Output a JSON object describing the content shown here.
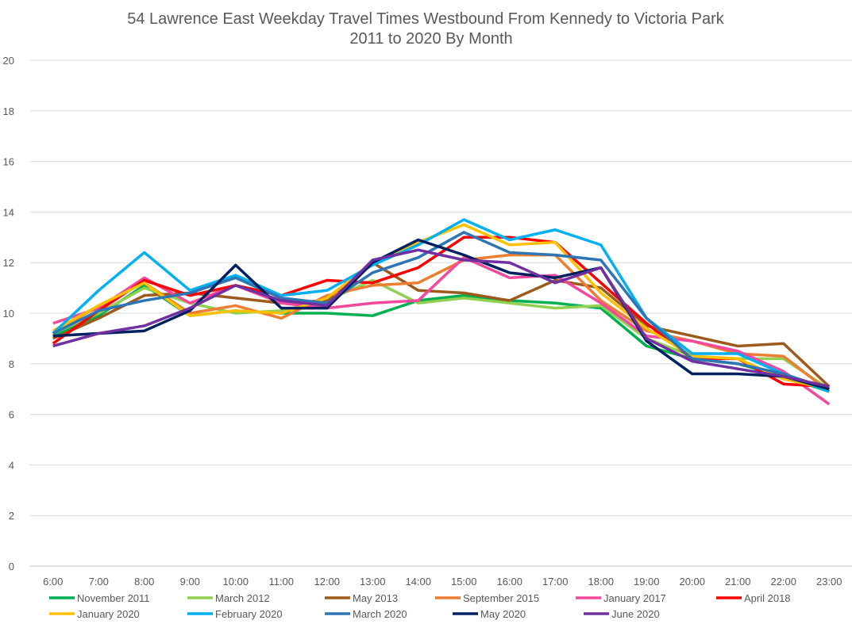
{
  "chart_data": {
    "type": "line",
    "title": [
      "54 Lawrence East Weekday Travel Times Westbound From Kennedy to Victoria Park",
      "2011 to 2020 By Month"
    ],
    "xlabel": "",
    "ylabel": "",
    "ylim": [
      0,
      20
    ],
    "yticks": [
      0,
      2,
      4,
      6,
      8,
      10,
      12,
      14,
      16,
      18,
      20
    ],
    "grid": true,
    "legend_position": "bottom",
    "categories": [
      "6:00",
      "7:00",
      "8:00",
      "9:00",
      "10:00",
      "11:00",
      "12:00",
      "13:00",
      "14:00",
      "15:00",
      "16:00",
      "17:00",
      "18:00",
      "19:00",
      "20:00",
      "21:00",
      "22:00",
      "23:00"
    ],
    "series": [
      {
        "name": "November 2011",
        "color": "#00b050",
        "values": [
          9.1,
          9.9,
          11.1,
          9.9,
          10.1,
          10.0,
          10.0,
          9.9,
          10.5,
          10.7,
          10.5,
          10.4,
          10.2,
          8.7,
          8.2,
          8.0,
          7.5,
          6.9
        ]
      },
      {
        "name": "March 2012",
        "color": "#92d050",
        "values": [
          9.2,
          10.0,
          11.0,
          10.4,
          10.0,
          10.1,
          10.5,
          11.3,
          10.4,
          10.6,
          10.4,
          10.2,
          10.3,
          9.0,
          8.3,
          8.2,
          8.2,
          7.0
        ]
      },
      {
        "name": "May 2013",
        "color": "#9c5a1c",
        "values": [
          9.0,
          9.8,
          10.7,
          10.8,
          10.6,
          10.4,
          10.5,
          12.0,
          10.9,
          10.8,
          10.5,
          11.3,
          11.0,
          9.5,
          9.1,
          8.7,
          8.8,
          7.1
        ]
      },
      {
        "name": "September 2015",
        "color": "#ed7d31",
        "values": [
          9.2,
          10.3,
          11.2,
          10.0,
          10.3,
          9.8,
          10.7,
          11.1,
          11.2,
          12.1,
          12.3,
          12.3,
          10.5,
          9.3,
          8.9,
          8.4,
          8.3,
          6.9
        ]
      },
      {
        "name": "January 2017",
        "color": "#f4489e",
        "values": [
          9.6,
          10.2,
          11.4,
          10.4,
          11.1,
          10.4,
          10.2,
          10.4,
          10.5,
          12.2,
          11.4,
          11.5,
          10.4,
          9.1,
          8.9,
          8.5,
          7.7,
          6.4
        ]
      },
      {
        "name": "April 2018",
        "color": "#ff0000",
        "values": [
          8.8,
          10.1,
          11.3,
          10.7,
          11.1,
          10.7,
          11.3,
          11.2,
          11.8,
          13.0,
          13.0,
          12.8,
          11.2,
          9.6,
          8.2,
          8.2,
          7.2,
          7.1
        ]
      },
      {
        "name": "January 2020",
        "color": "#ffc000",
        "values": [
          9.3,
          10.3,
          11.2,
          9.9,
          10.1,
          10.0,
          10.6,
          12.0,
          12.8,
          13.5,
          12.7,
          12.8,
          10.8,
          9.4,
          8.3,
          8.2,
          7.4,
          7.0
        ]
      },
      {
        "name": "February 2020",
        "color": "#00b0f0",
        "values": [
          9.2,
          10.9,
          12.4,
          10.9,
          11.5,
          10.7,
          10.9,
          11.9,
          12.7,
          13.7,
          12.9,
          13.3,
          12.7,
          9.8,
          8.4,
          8.4,
          7.6,
          6.9
        ]
      },
      {
        "name": "March 2020",
        "color": "#2e75b6",
        "values": [
          9.2,
          10.1,
          10.5,
          10.8,
          11.4,
          10.6,
          10.4,
          11.6,
          12.2,
          13.2,
          12.4,
          12.3,
          12.1,
          9.8,
          8.2,
          8.0,
          7.6,
          7.0
        ]
      },
      {
        "name": "May 2020",
        "color": "#002060",
        "values": [
          9.1,
          9.2,
          9.3,
          10.1,
          11.9,
          10.2,
          10.2,
          12.0,
          12.9,
          12.3,
          11.6,
          11.4,
          11.8,
          8.9,
          7.6,
          7.6,
          7.5,
          7.0
        ]
      },
      {
        "name": "June 2020",
        "color": "#7030a0",
        "values": [
          8.7,
          9.2,
          9.5,
          10.2,
          11.1,
          10.5,
          10.3,
          12.1,
          12.5,
          12.1,
          12.0,
          11.2,
          11.8,
          9.0,
          8.1,
          7.8,
          7.5,
          7.1
        ]
      }
    ]
  }
}
